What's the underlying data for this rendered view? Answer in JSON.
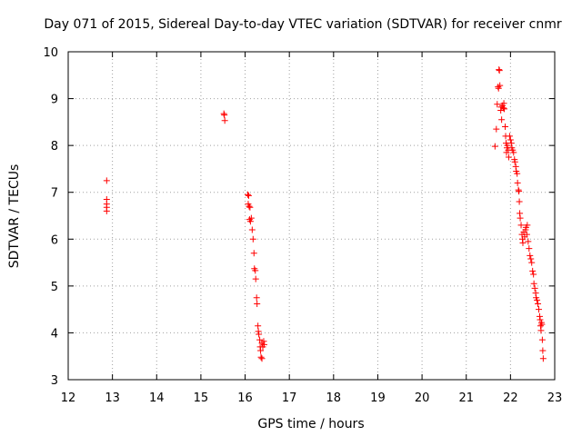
{
  "chart_data": {
    "type": "scatter",
    "title": "Day 071 of 2015, Sidereal Day-to-day VTEC variation (SDTVAR) for receiver cnmr",
    "xlabel": "GPS time / hours",
    "ylabel": "SDTVAR / TECUs",
    "xlim": [
      12,
      23
    ],
    "ylim": [
      3,
      10
    ],
    "grid": true,
    "marker": "+",
    "x_ticks": [
      "12",
      "13",
      "14",
      "15",
      "16",
      "17",
      "18",
      "19",
      "20",
      "21",
      "22",
      "23"
    ],
    "y_ticks": [
      "3",
      "4",
      "5",
      "6",
      "7",
      "8",
      "9",
      "10"
    ],
    "colors": {
      "points": "#ff0000",
      "grid": "#a0a0a0",
      "axes": "#000000"
    },
    "series": [
      {
        "name": "SDTVAR",
        "points": [
          [
            12.87,
            7.25
          ],
          [
            12.87,
            6.85
          ],
          [
            12.87,
            6.75
          ],
          [
            12.87,
            6.68
          ],
          [
            12.87,
            6.6
          ],
          [
            15.52,
            8.68
          ],
          [
            15.53,
            8.65
          ],
          [
            15.54,
            8.53
          ],
          [
            16.06,
            6.95
          ],
          [
            16.08,
            6.93
          ],
          [
            16.07,
            6.75
          ],
          [
            16.09,
            6.7
          ],
          [
            16.11,
            6.68
          ],
          [
            16.1,
            6.42
          ],
          [
            16.12,
            6.38
          ],
          [
            16.14,
            6.45
          ],
          [
            16.16,
            6.2
          ],
          [
            16.18,
            6.0
          ],
          [
            16.2,
            5.7
          ],
          [
            16.21,
            5.37
          ],
          [
            16.23,
            5.33
          ],
          [
            16.24,
            5.15
          ],
          [
            16.26,
            4.75
          ],
          [
            16.27,
            4.62
          ],
          [
            16.29,
            4.15
          ],
          [
            16.3,
            4.03
          ],
          [
            16.31,
            3.97
          ],
          [
            16.33,
            3.85
          ],
          [
            16.34,
            3.7
          ],
          [
            16.35,
            3.62
          ],
          [
            16.36,
            3.48
          ],
          [
            16.38,
            3.45
          ],
          [
            16.4,
            3.7
          ],
          [
            16.42,
            3.82
          ],
          [
            16.43,
            3.75
          ],
          [
            16.38,
            3.78
          ],
          [
            21.65,
            7.98
          ],
          [
            21.68,
            8.35
          ],
          [
            21.7,
            8.88
          ],
          [
            21.72,
            9.25
          ],
          [
            21.73,
            9.22
          ],
          [
            21.74,
            9.62
          ],
          [
            21.75,
            9.6
          ],
          [
            21.76,
            9.28
          ],
          [
            21.78,
            8.75
          ],
          [
            21.79,
            8.82
          ],
          [
            21.8,
            8.55
          ],
          [
            21.82,
            8.85
          ],
          [
            21.84,
            8.8
          ],
          [
            21.85,
            8.9
          ],
          [
            21.86,
            8.78
          ],
          [
            21.88,
            8.4
          ],
          [
            21.89,
            8.2
          ],
          [
            21.9,
            8.05
          ],
          [
            21.91,
            7.85
          ],
          [
            21.92,
            7.95
          ],
          [
            21.93,
            8.0
          ],
          [
            21.95,
            7.9
          ],
          [
            21.96,
            7.75
          ],
          [
            21.98,
            8.2
          ],
          [
            22.0,
            8.12
          ],
          [
            22.02,
            8.05
          ],
          [
            22.03,
            7.95
          ],
          [
            22.05,
            7.9
          ],
          [
            22.07,
            7.85
          ],
          [
            22.09,
            7.7
          ],
          [
            22.1,
            7.65
          ],
          [
            22.12,
            7.55
          ],
          [
            22.13,
            7.45
          ],
          [
            22.15,
            7.4
          ],
          [
            22.16,
            7.2
          ],
          [
            22.18,
            7.05
          ],
          [
            22.19,
            7.02
          ],
          [
            22.2,
            6.8
          ],
          [
            22.21,
            6.55
          ],
          [
            22.22,
            6.45
          ],
          [
            22.24,
            6.3
          ],
          [
            22.26,
            6.1
          ],
          [
            22.27,
            6.0
          ],
          [
            22.28,
            5.92
          ],
          [
            22.3,
            6.15
          ],
          [
            22.32,
            6.05
          ],
          [
            22.34,
            6.2
          ],
          [
            22.35,
            6.25
          ],
          [
            22.37,
            6.1
          ],
          [
            22.38,
            6.3
          ],
          [
            22.4,
            5.95
          ],
          [
            22.42,
            5.8
          ],
          [
            22.44,
            5.65
          ],
          [
            22.46,
            5.58
          ],
          [
            22.48,
            5.5
          ],
          [
            22.5,
            5.32
          ],
          [
            22.52,
            5.25
          ],
          [
            22.53,
            5.05
          ],
          [
            22.55,
            4.95
          ],
          [
            22.57,
            4.85
          ],
          [
            22.58,
            4.75
          ],
          [
            22.6,
            4.7
          ],
          [
            22.62,
            4.62
          ],
          [
            22.64,
            4.5
          ],
          [
            22.66,
            4.35
          ],
          [
            22.67,
            4.28
          ],
          [
            22.68,
            4.15
          ],
          [
            22.69,
            4.05
          ],
          [
            22.7,
            4.22
          ],
          [
            22.71,
            4.18
          ],
          [
            22.72,
            3.85
          ],
          [
            22.73,
            3.62
          ],
          [
            22.74,
            3.45
          ]
        ]
      }
    ]
  }
}
